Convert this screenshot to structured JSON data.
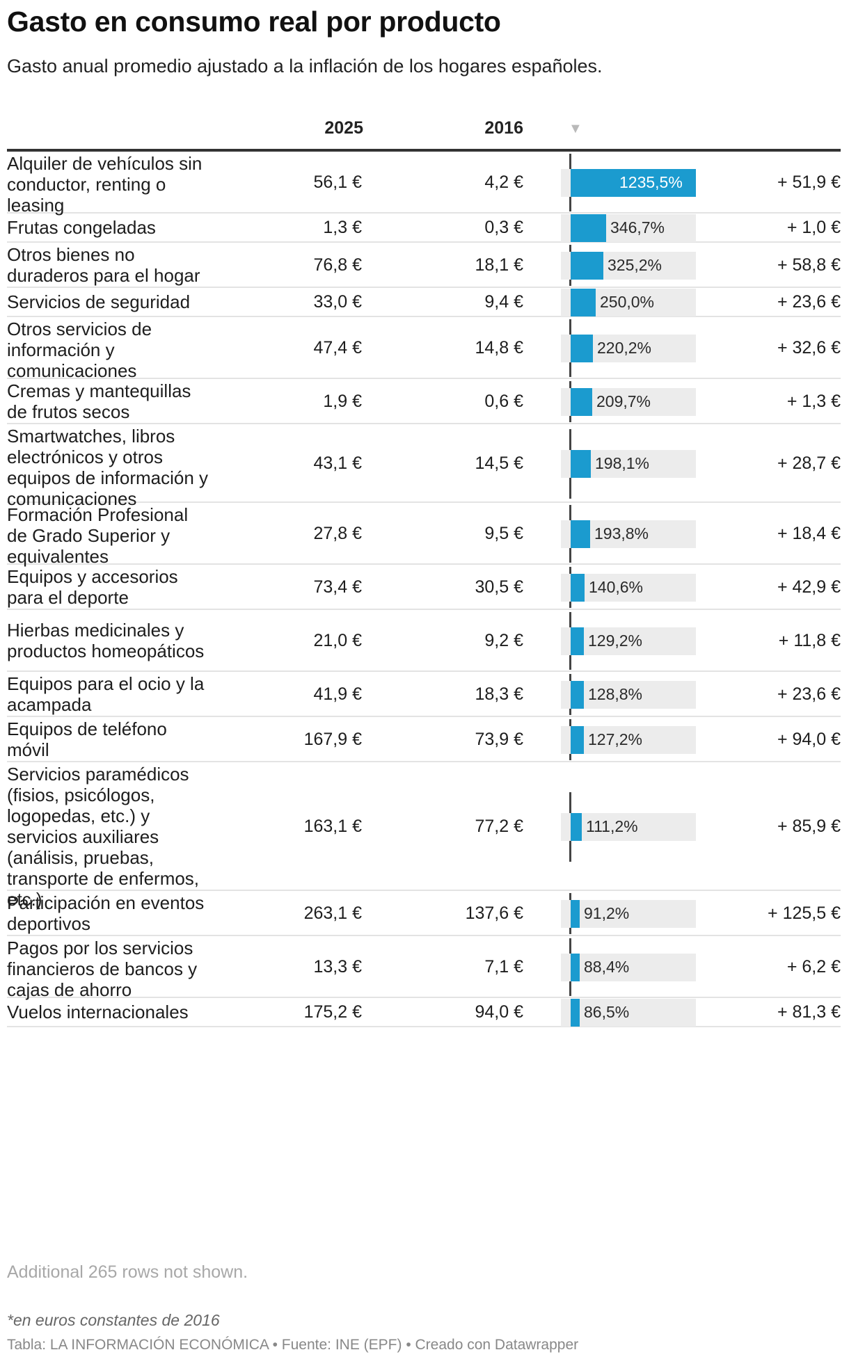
{
  "header": {
    "title": "Gasto en consumo real por producto",
    "subtitle": "Gasto anual promedio ajustado a la inflación de los hogares españoles."
  },
  "columns": {
    "col_2025": "2025",
    "col_2016": "2016",
    "sort_icon": "▼"
  },
  "chart_data": {
    "type": "table",
    "columns": [
      "",
      "2025",
      "2016",
      "",
      ""
    ],
    "bar_max": 1235.5,
    "accent_color": "#1b9bcf",
    "rows": [
      {
        "name": "Alquiler de vehículos sin conductor, renting o leasing",
        "v2025": "56,1 €",
        "v2016": "4,2 €",
        "pct": 1235.5,
        "pct_label": "1235,5%",
        "diff": "+ 51,9 €"
      },
      {
        "name": "Frutas congeladas",
        "v2025": "1,3 €",
        "v2016": "0,3 €",
        "pct": 346.7,
        "pct_label": "346,7%",
        "diff": "+ 1,0 €"
      },
      {
        "name": "Otros bienes no duraderos para el hogar",
        "v2025": "76,8 €",
        "v2016": "18,1 €",
        "pct": 325.2,
        "pct_label": "325,2%",
        "diff": "+ 58,8 €"
      },
      {
        "name": "Servicios de seguridad",
        "v2025": "33,0 €",
        "v2016": "9,4 €",
        "pct": 250.0,
        "pct_label": "250,0%",
        "diff": "+ 23,6 €"
      },
      {
        "name": "Otros servicios de información y comunicaciones",
        "v2025": "47,4 €",
        "v2016": "14,8 €",
        "pct": 220.2,
        "pct_label": "220,2%",
        "diff": "+ 32,6 €"
      },
      {
        "name": "Cremas y mantequillas de frutos secos",
        "v2025": "1,9 €",
        "v2016": "0,6 €",
        "pct": 209.7,
        "pct_label": "209,7%",
        "diff": "+ 1,3 €"
      },
      {
        "name": "Smartwatches, libros electrónicos y otros equipos de información y comunicaciones",
        "v2025": "43,1 €",
        "v2016": "14,5 €",
        "pct": 198.1,
        "pct_label": "198,1%",
        "diff": "+ 28,7 €"
      },
      {
        "name": "Formación Profesional de Grado Superior y equivalentes",
        "v2025": "27,8 €",
        "v2016": "9,5 €",
        "pct": 193.8,
        "pct_label": "193,8%",
        "diff": "+ 18,4 €"
      },
      {
        "name": "Equipos y accesorios para el deporte",
        "v2025": "73,4 €",
        "v2016": "30,5 €",
        "pct": 140.6,
        "pct_label": "140,6%",
        "diff": "+ 42,9 €"
      },
      {
        "name": "Hierbas medicinales y productos homeopáticos",
        "v2025": "21,0 €",
        "v2016": "9,2 €",
        "pct": 129.2,
        "pct_label": "129,2%",
        "diff": "+ 11,8 €"
      },
      {
        "name": "Equipos para el ocio y la acampada",
        "v2025": "41,9 €",
        "v2016": "18,3 €",
        "pct": 128.8,
        "pct_label": "128,8%",
        "diff": "+ 23,6 €"
      },
      {
        "name": "Equipos de teléfono móvil",
        "v2025": "167,9 €",
        "v2016": "73,9 €",
        "pct": 127.2,
        "pct_label": "127,2%",
        "diff": "+ 94,0 €"
      },
      {
        "name": "Servicios paramédicos (fisios, psicólogos, logopedas, etc.) y servicios auxiliares (análisis, pruebas, transporte de enfermos, etc.)",
        "v2025": "163,1 €",
        "v2016": "77,2 €",
        "pct": 111.2,
        "pct_label": "111,2%",
        "diff": "+ 85,9 €"
      },
      {
        "name": "Participación en eventos deportivos",
        "v2025": "263,1 €",
        "v2016": "137,6 €",
        "pct": 91.2,
        "pct_label": "91,2%",
        "diff": "+ 125,5 €"
      },
      {
        "name": "Pagos por los servicios financieros de bancos y cajas de ahorro",
        "v2025": "13,3 €",
        "v2016": "7,1 €",
        "pct": 88.4,
        "pct_label": "88,4%",
        "diff": "+ 6,2 €"
      },
      {
        "name": "Vuelos internacionales",
        "v2025": "175,2 €",
        "v2016": "94,0 €",
        "pct": 86.5,
        "pct_label": "86,5%",
        "diff": "+ 81,3 €"
      }
    ]
  },
  "footer": {
    "more_rows": "Additional 265 rows not shown.",
    "note": "*en euros constantes de 2016",
    "credits": "Tabla: LA INFORMACIÓN ECONÓMICA • Fuente: INE (EPF) • Creado con Datawrapper"
  }
}
